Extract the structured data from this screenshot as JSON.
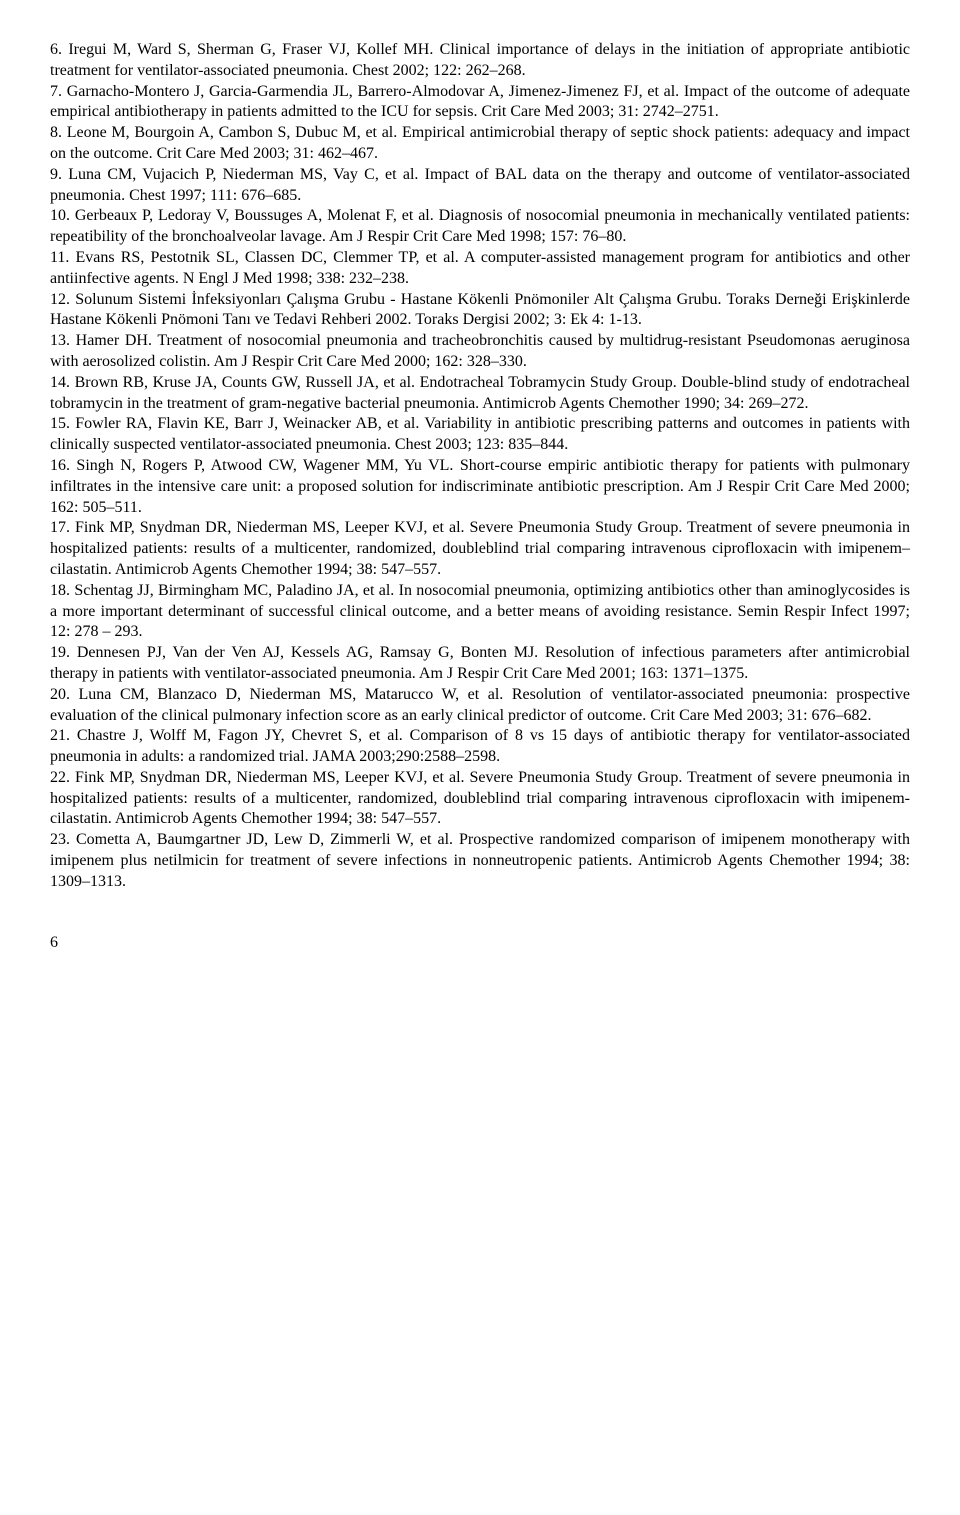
{
  "references": {
    "r6": "6. Iregui M, Ward S, Sherman G, Fraser VJ, Kollef MH. Clinical importance of delays in the initiation of appropriate antibiotic treatment for ventilator-associated pneumonia. Chest 2002; 122: 262–268.",
    "r7": "7. Garnacho-Montero J, Garcia-Garmendia JL, Barrero-Almodovar A, Jimenez-Jimenez FJ, et al. Impact of the outcome of adequate empirical antibiotherapy in patients admitted to the ICU for sepsis. Crit Care Med 2003; 31: 2742–2751.",
    "r8": "8. Leone M, Bourgoin A, Cambon S, Dubuc M, et al. Empirical antimicrobial therapy of septic shock patients: adequacy and impact on the outcome. Crit Care Med 2003; 31: 462–467.",
    "r9": "9. Luna CM, Vujacich P, Niederman MS, Vay C, et al. Impact of BAL data on the therapy and outcome of ventilator-associated pneumonia. Chest 1997; 111: 676–685.",
    "r10": "10. Gerbeaux P, Ledoray V, Boussuges A, Molenat F, et al. Diagnosis of nosocomial pneumonia in mechanically ventilated patients: repeatibility of the bronchoalveolar lavage. Am J Respir Crit Care Med 1998; 157: 76–80.",
    "r11": "11. Evans RS, Pestotnik SL, Classen DC, Clemmer TP, et al. A computer-assisted management program for antibiotics and other antiinfective agents. N Engl J Med 1998; 338: 232–238.",
    "r12": "12. Solunum Sistemi İnfeksiyonları Çalışma Grubu - Hastane Kökenli Pnömoniler Alt Çalışma Grubu. Toraks Derneği Erişkinlerde Hastane Kökenli Pnömoni Tanı ve Tedavi Rehberi 2002. Toraks Dergisi 2002; 3: Ek 4: 1-13.",
    "r13": "13. Hamer DH. Treatment of nosocomial pneumonia and tracheobronchitis caused by multidrug-resistant Pseudomonas aeruginosa with aerosolized colistin. Am J Respir Crit Care Med 2000; 162: 328–330.",
    "r14": "14. Brown RB, Kruse JA, Counts GW, Russell JA, et al. Endotracheal Tobramycin Study Group. Double-blind study of endotracheal tobramycin in the treatment of gram-negative bacterial pneumonia. Antimicrob Agents Chemother 1990; 34: 269–272.",
    "r15": "15. Fowler RA, Flavin KE, Barr J, Weinacker AB, et al. Variability in antibiotic prescribing patterns and outcomes in patients with clinically suspected ventilator-associated pneumonia. Chest 2003; 123: 835–844.",
    "r16": "16. Singh N, Rogers P, Atwood CW, Wagener MM, Yu VL. Short-course empiric antibiotic therapy for patients with pulmonary infiltrates in the intensive care unit: a proposed solution for indiscriminate antibiotic prescription. Am J Respir Crit Care Med 2000; 162: 505–511.",
    "r17": "17. Fink MP, Snydman DR, Niederman MS, Leeper KVJ, et al. Severe Pneumonia Study Group. Treatment of severe pneumonia in hospitalized patients: results of a multicenter, randomized, doubleblind trial comparing intravenous ciprofloxacin with imipenem–cilastatin. Antimicrob Agents Chemother 1994; 38: 547–557.",
    "r18": "18. Schentag JJ, Birmingham MC, Paladino JA, et al. In nosocomial pneumonia, optimizing antibiotics other than aminoglycosides is a more important determinant of successful clinical outcome, and a better means of avoiding resistance. Semin Respir Infect 1997; 12: 278 – 293.",
    "r19": "19. Dennesen PJ, Van der Ven AJ, Kessels AG, Ramsay G, Bonten MJ. Resolution of infectious parameters after antimicrobial therapy in patients with ventilator-associated pneumonia. Am J Respir Crit Care Med 2001; 163: 1371–1375.",
    "r20": "20. Luna CM, Blanzaco D, Niederman MS, Matarucco W, et al. Resolution of ventilator-associated pneumonia: prospective evaluation of the clinical pulmonary infection score as an early clinical predictor of outcome. Crit Care Med 2003; 31: 676–682.",
    "r21": "21. Chastre J, Wolff M, Fagon JY, Chevret S, et al. Comparison of 8 vs 15 days of antibiotic therapy for ventilator-associated pneumonia in adults: a randomized trial. JAMA 2003;290:2588–2598.",
    "r22": "22. Fink MP, Snydman DR, Niederman MS, Leeper KVJ, et al. Severe Pneumonia Study Group. Treatment of severe pneumonia in hospitalized patients: results of a multicenter, randomized, doubleblind trial comparing intravenous ciprofloxacin with imipenem-cilastatin. Antimicrob Agents Chemother 1994; 38: 547–557.",
    "r23": "23. Cometta A, Baumgartner JD, Lew D, Zimmerli W, et al. Prospective randomized comparison of imipenem monotherapy with imipenem plus netilmicin for treatment of severe infections in nonneutropenic patients. Antimicrob Agents Chemother 1994; 38: 1309–1313."
  },
  "page_number": "6"
}
